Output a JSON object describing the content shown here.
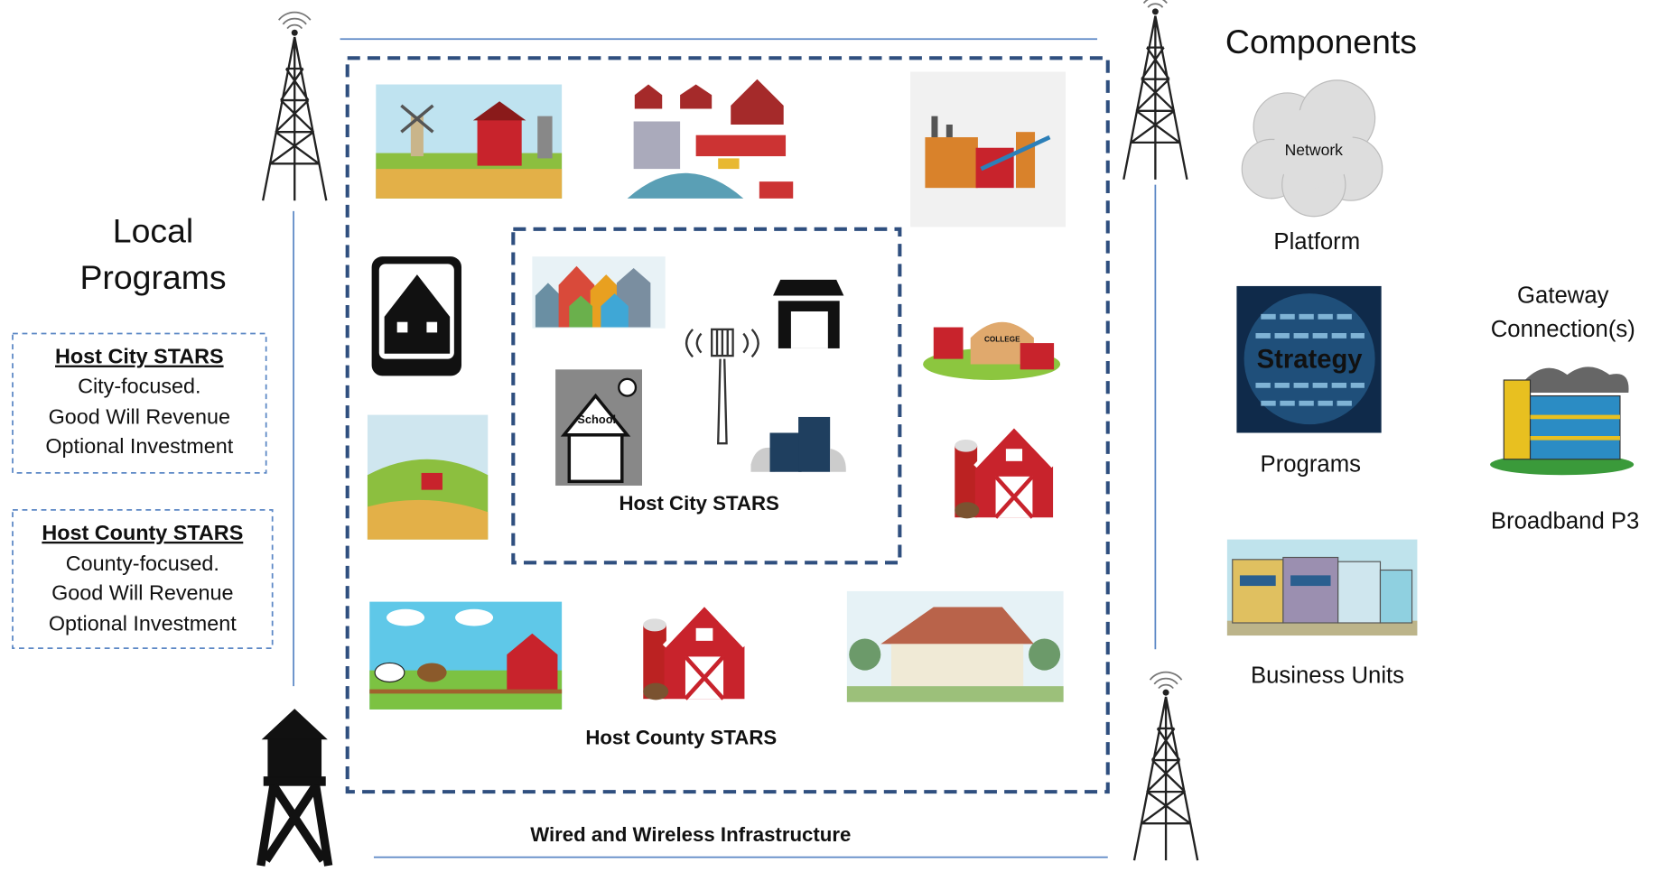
{
  "heading": "Components",
  "local_programs": {
    "lines": [
      "Local",
      "Programs"
    ],
    "cards": [
      {
        "title": "Host City STARS",
        "lines": [
          "City-focused.",
          "Good Will Revenue",
          "Optional Investment"
        ]
      },
      {
        "title": "Host County STARS",
        "lines": [
          "County-focused.",
          "Good Will Revenue",
          "Optional Investment"
        ]
      }
    ]
  },
  "map": {
    "city_label": "Host City STARS",
    "county_label": "Host County STARS",
    "infrastructure_label": "Wired and Wireless Infrastructure",
    "school_sign": "School",
    "college_sign": "COLLEGE"
  },
  "components": {
    "platform": {
      "icon_text": "Network",
      "label": "Platform"
    },
    "programs": {
      "icon_text": "Strategy",
      "label": "Programs"
    },
    "gateway": {
      "lines": [
        "Gateway",
        "Connection(s)"
      ],
      "label": "Broadband P3"
    },
    "business": {
      "label": "Business Units"
    }
  }
}
